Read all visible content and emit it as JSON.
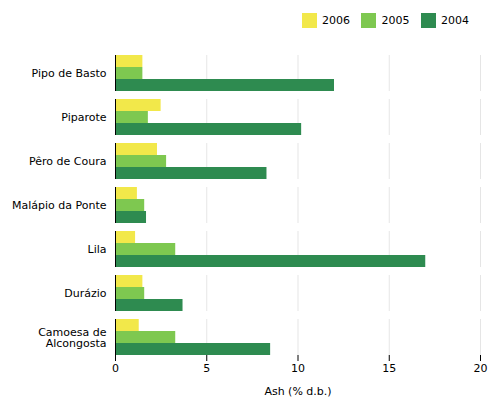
{
  "chart_data": {
    "type": "bar",
    "orientation": "horizontal",
    "categories": [
      "Pipo de Basto",
      "Piparote",
      "Pêro de Coura",
      "Malápio da Ponte",
      "Lila",
      "Durázio",
      "Camoesa de\nAlcongosta"
    ],
    "series": [
      {
        "name": "2006",
        "color": "#f2e84a",
        "values": [
          1.5,
          2.5,
          2.3,
          1.2,
          1.1,
          1.5,
          1.3
        ]
      },
      {
        "name": "2005",
        "color": "#7ec850",
        "values": [
          1.5,
          1.8,
          2.8,
          1.6,
          3.3,
          1.6,
          3.3
        ]
      },
      {
        "name": "2004",
        "color": "#2e8b50",
        "values": [
          12.0,
          10.2,
          8.3,
          1.7,
          17.0,
          3.7,
          8.5
        ]
      }
    ],
    "xlabel": "Ash (% d.b.)",
    "xlim": [
      0,
      20
    ],
    "xticks": [
      0,
      5,
      10,
      15,
      20
    ],
    "grid": true,
    "legend": "upper right"
  }
}
